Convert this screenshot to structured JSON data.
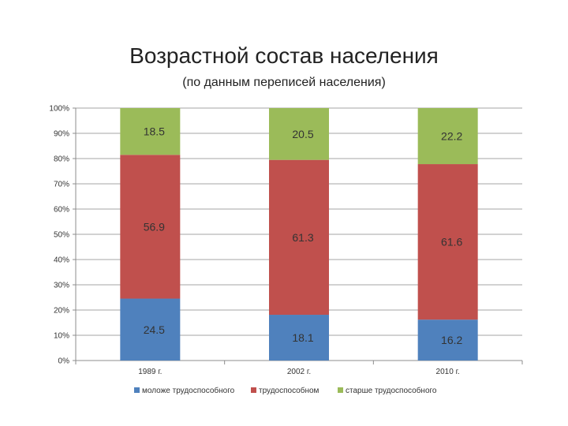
{
  "chart_data": {
    "type": "bar",
    "stacked": true,
    "percent_stacked": true,
    "title": "Возрастной состав населения",
    "subtitle": "(по данным переписей населения)",
    "categories": [
      "1989 г.",
      "2002 г.",
      "2010 г."
    ],
    "series": [
      {
        "name": "моложе трудоспособного",
        "values": [
          24.5,
          18.1,
          16.2
        ],
        "color": "#4f81bd"
      },
      {
        "name": "трудоспособном",
        "values": [
          56.9,
          61.3,
          61.6
        ],
        "color": "#c0504d"
      },
      {
        "name": "старше трудоспособного",
        "values": [
          18.5,
          20.5,
          22.2
        ],
        "color": "#9bbb59"
      }
    ],
    "data_labels": [
      [
        "24.5",
        "18.1",
        "16.2"
      ],
      [
        "56.9",
        "61.3",
        "61.6"
      ],
      [
        "18.5",
        "20.5",
        "22.2"
      ]
    ],
    "y_ticks": [
      "0%",
      "10%",
      "20%",
      "30%",
      "40%",
      "50%",
      "60%",
      "70%",
      "80%",
      "90%",
      "100%"
    ],
    "ylim": [
      0,
      100
    ],
    "grid": true,
    "legend_position": "bottom"
  }
}
